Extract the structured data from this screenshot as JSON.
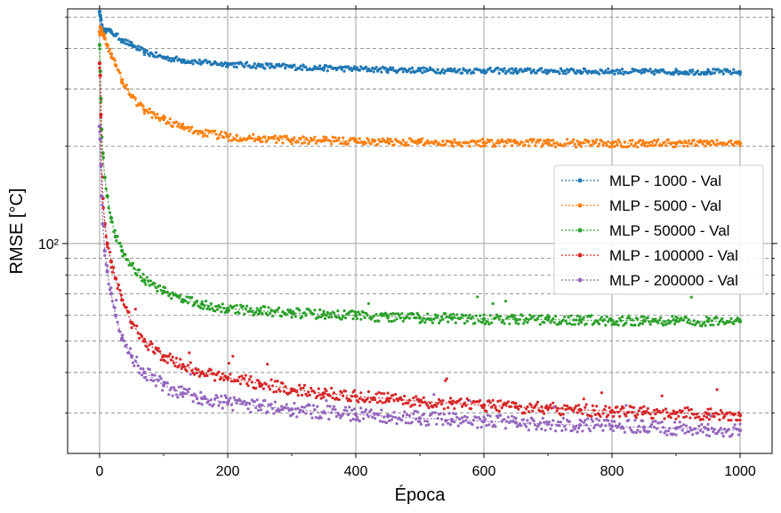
{
  "chart_data": {
    "type": "line",
    "xlabel": "Época",
    "ylabel": "RMSE [°C]",
    "xlim": [
      -50,
      1050
    ],
    "ylim": [
      22.5,
      530
    ],
    "yscale": "log",
    "x_ticks": [
      0,
      200,
      400,
      600,
      800,
      1000
    ],
    "y_major_ticks": [
      100
    ],
    "y_major_tick_labels": [
      "10²"
    ],
    "y_minor_ticks": [
      30,
      40,
      50,
      60,
      70,
      80,
      90,
      200,
      300,
      400,
      500
    ],
    "grid": "major and minor",
    "legend_position": "center-right",
    "x": [
      0,
      1,
      2,
      3,
      5,
      8,
      12,
      18,
      25,
      35,
      50,
      70,
      100,
      130,
      160,
      200,
      250,
      300,
      350,
      400,
      450,
      500,
      550,
      600,
      650,
      700,
      750,
      800,
      850,
      900,
      950,
      1000
    ],
    "series": [
      {
        "name": "MLP - 1000 - Val",
        "color": "#1f77b4",
        "values": [
          520,
          505,
          490,
          470,
          460,
          458,
          455,
          450,
          440,
          425,
          410,
          390,
          375,
          368,
          362,
          358,
          354,
          351,
          348,
          346,
          344,
          343,
          342,
          342,
          341,
          341,
          340,
          340,
          339,
          339,
          339,
          338
        ]
      },
      {
        "name": "MLP - 5000 - Val",
        "color": "#ff7f0e",
        "values": [
          450,
          465,
          462,
          455,
          445,
          430,
          410,
          385,
          355,
          320,
          285,
          258,
          242,
          228,
          220,
          214,
          211,
          209,
          208,
          207,
          206,
          206,
          205,
          205,
          205,
          204,
          204,
          204,
          204,
          204,
          204,
          204
        ]
      },
      {
        "name": "MLP - 50000 - Val",
        "color": "#2ca02c",
        "values": [
          410,
          340,
          280,
          225,
          190,
          160,
          140,
          120,
          105,
          95,
          86,
          77,
          71,
          67,
          65,
          63,
          62,
          61,
          60.5,
          60,
          59.5,
          59,
          58.8,
          58.5,
          58.3,
          58.2,
          58,
          57.9,
          57.8,
          57.7,
          57.6,
          57.5
        ]
      },
      {
        "name": "MLP - 100000 - Val",
        "color": "#d62728",
        "values": [
          360,
          330,
          250,
          175,
          138,
          115,
          100,
          88,
          78,
          67,
          57,
          50,
          45,
          42,
          40,
          38.5,
          37,
          35.5,
          34.5,
          33.8,
          33.2,
          32.6,
          32.1,
          31.7,
          31.3,
          31,
          30.7,
          30.4,
          30.2,
          30,
          29.8,
          29.5
        ]
      },
      {
        "name": "MLP - 200000 - Val",
        "color": "#9467bd",
        "values": [
          230,
          210,
          175,
          140,
          115,
          95,
          82,
          70,
          60,
          51,
          45,
          40,
          36.5,
          34.5,
          33.3,
          32.3,
          31.5,
          30.8,
          30.2,
          29.7,
          29.3,
          28.9,
          28.6,
          28.3,
          28,
          27.7,
          27.5,
          27.3,
          27.1,
          26.9,
          26.7,
          26.5
        ]
      }
    ]
  }
}
